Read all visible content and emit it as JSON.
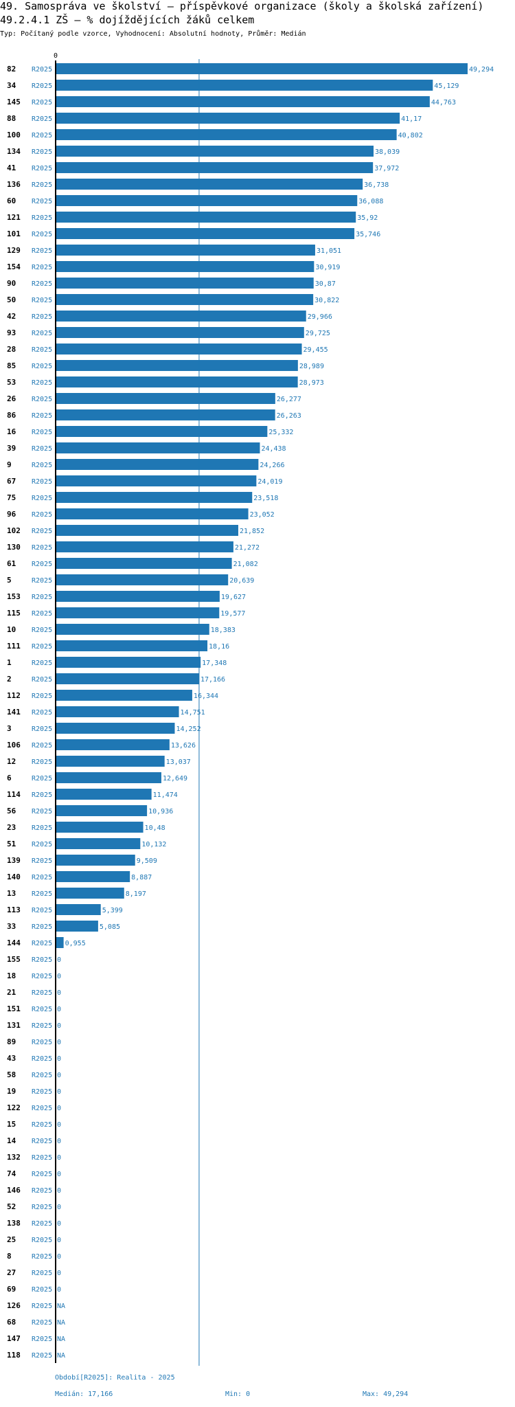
{
  "header": {
    "title_line1": "49. Samospráva ve školství – příspěvkové organizace (školy a školská zařízení)",
    "title_line2": "49.2.4.1 ZŠ – % dojíždějících žáků celkem",
    "subtitle": "Typ: Počítaný podle vzorce, Vyhodnocení: Absolutní hodnoty, Průměr: Medián"
  },
  "colors": {
    "bar": "#1f77b4",
    "label": "#1f77b4",
    "median_line": "#1f77b4",
    "axis": "#000000"
  },
  "chart_data": {
    "type": "bar",
    "orientation": "horizontal",
    "title": "49.2.4.1 ZŠ – % dojíždějících žáků celkem",
    "series_label": "R2025",
    "axis_zero_label": "0",
    "xlim": [
      0,
      49.294
    ],
    "median": 17.166,
    "categories": [
      "82",
      "34",
      "145",
      "88",
      "100",
      "134",
      "41",
      "136",
      "60",
      "121",
      "101",
      "129",
      "154",
      "90",
      "50",
      "42",
      "93",
      "28",
      "85",
      "53",
      "26",
      "86",
      "16",
      "39",
      "9",
      "67",
      "75",
      "96",
      "102",
      "130",
      "61",
      "5",
      "153",
      "115",
      "10",
      "111",
      "1",
      "2",
      "112",
      "141",
      "3",
      "106",
      "12",
      "6",
      "114",
      "56",
      "23",
      "51",
      "139",
      "140",
      "13",
      "113",
      "33",
      "144",
      "155",
      "18",
      "21",
      "151",
      "131",
      "89",
      "43",
      "58",
      "19",
      "122",
      "15",
      "14",
      "132",
      "74",
      "146",
      "52",
      "138",
      "25",
      "8",
      "27",
      "69",
      "126",
      "68",
      "147",
      "118"
    ],
    "values": [
      49.294,
      45.129,
      44.763,
      41.17,
      40.802,
      38.039,
      37.972,
      36.738,
      36.088,
      35.92,
      35.746,
      31.051,
      30.919,
      30.87,
      30.822,
      29.966,
      29.725,
      29.455,
      28.989,
      28.973,
      26.277,
      26.263,
      25.332,
      24.438,
      24.266,
      24.019,
      23.518,
      23.052,
      21.852,
      21.272,
      21.082,
      20.639,
      19.627,
      19.577,
      18.383,
      18.16,
      17.348,
      17.166,
      16.344,
      14.751,
      14.252,
      13.626,
      13.037,
      12.649,
      11.474,
      10.936,
      10.48,
      10.132,
      9.509,
      8.887,
      8.197,
      5.399,
      5.085,
      0.955,
      0,
      0,
      0,
      0,
      0,
      0,
      0,
      0,
      0,
      0,
      0,
      0,
      0,
      0,
      0,
      0,
      0,
      0,
      0,
      0,
      0,
      null,
      null,
      null,
      null
    ],
    "value_labels": [
      "49,294",
      "45,129",
      "44,763",
      "41,17",
      "40,802",
      "38,039",
      "37,972",
      "36,738",
      "36,088",
      "35,92",
      "35,746",
      "31,051",
      "30,919",
      "30,87",
      "30,822",
      "29,966",
      "29,725",
      "29,455",
      "28,989",
      "28,973",
      "26,277",
      "26,263",
      "25,332",
      "24,438",
      "24,266",
      "24,019",
      "23,518",
      "23,052",
      "21,852",
      "21,272",
      "21,082",
      "20,639",
      "19,627",
      "19,577",
      "18,383",
      "18,16",
      "17,348",
      "17,166",
      "16,344",
      "14,751",
      "14,252",
      "13,626",
      "13,037",
      "12,649",
      "11,474",
      "10,936",
      "10,48",
      "10,132",
      "9,509",
      "8,887",
      "8,197",
      "5,399",
      "5,085",
      "0,955",
      "0",
      "0",
      "0",
      "0",
      "0",
      "0",
      "0",
      "0",
      "0",
      "0",
      "0",
      "0",
      "0",
      "0",
      "0",
      "0",
      "0",
      "0",
      "0",
      "0",
      "0",
      "NA",
      "NA",
      "NA",
      "NA"
    ]
  },
  "footer": {
    "period": "Období[R2025]: Realita - 2025",
    "median": "Medián: 17,166",
    "min": "Min: 0",
    "max": "Max: 49,294"
  }
}
